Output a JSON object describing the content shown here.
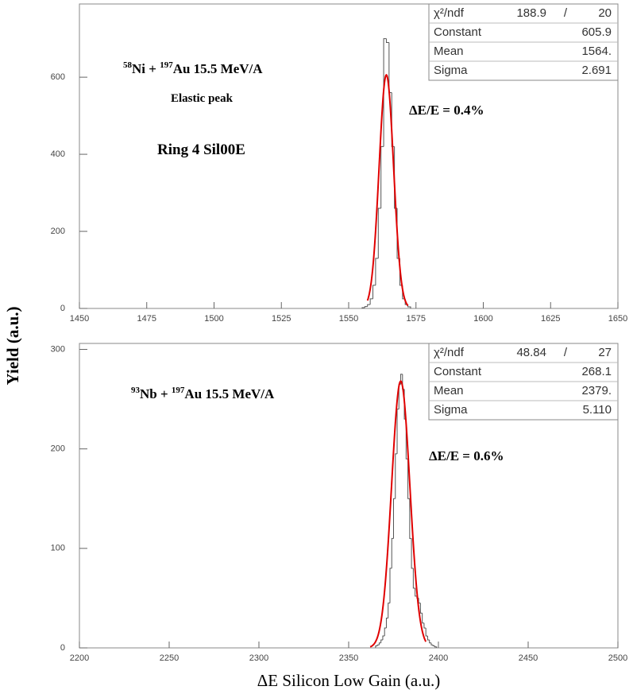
{
  "ylabel": "Yield (a.u.)",
  "chart_data": [
    {
      "type": "histogram",
      "color": "#555555",
      "fit_color": "#e00000",
      "xlim": [
        1450,
        1650
      ],
      "xticks": [
        1450,
        1475,
        1500,
        1525,
        1550,
        1575,
        1600,
        1625,
        1650
      ],
      "ylim": [
        0,
        790
      ],
      "yticks": [
        0,
        200,
        400,
        600
      ],
      "bins": [
        1555,
        1556,
        1557,
        1558,
        1559,
        1560,
        1561,
        1562,
        1563,
        1564,
        1565,
        1566,
        1567,
        1568,
        1569,
        1570,
        1571,
        1572,
        1573
      ],
      "values": [
        2,
        5,
        10,
        25,
        60,
        130,
        260,
        420,
        700,
        690,
        560,
        420,
        260,
        130,
        60,
        25,
        10,
        4
      ],
      "fit_range": [
        1557,
        1572
      ],
      "stats": [
        {
          "label": "χ²/ndf",
          "value": 188.9,
          "sep": "/",
          "ndf": 20
        },
        {
          "label": "Constant",
          "value": 605.9
        },
        {
          "label": "Mean",
          "value": 1564,
          "value_label": "1564."
        },
        {
          "label": "Sigma",
          "value": 2.691
        }
      ],
      "annotations": [
        [
          {
            "text": "58",
            "sup": true
          },
          {
            "text": "Ni + "
          },
          {
            "text": "197",
            "sup": true
          },
          {
            "text": "Au 15.5 MeV/A"
          }
        ],
        [
          {
            "text": "Elastic peak"
          }
        ],
        [
          {
            "text": "Ring 4 Sil00E"
          }
        ],
        [
          {
            "text": "ΔE/E = 0.4%"
          }
        ]
      ]
    },
    {
      "type": "histogram",
      "color": "#555555",
      "fit_color": "#e00000",
      "xlabel": "ΔE Silicon Low Gain (a.u.)",
      "xlim": [
        2200,
        2500
      ],
      "xticks": [
        2200,
        2250,
        2300,
        2350,
        2400,
        2450,
        2500
      ],
      "ylim": [
        0,
        306
      ],
      "yticks": [
        0,
        100,
        200,
        300
      ],
      "bins": [
        2365,
        2366,
        2367,
        2368,
        2369,
        2370,
        2371,
        2372,
        2373,
        2374,
        2375,
        2376,
        2377,
        2378,
        2379,
        2380,
        2381,
        2382,
        2383,
        2384,
        2385,
        2386,
        2387,
        2388,
        2389,
        2390,
        2391,
        2392,
        2393,
        2394,
        2395,
        2396,
        2397,
        2398,
        2399
      ],
      "values": [
        2,
        3,
        5,
        8,
        12,
        20,
        30,
        45,
        80,
        110,
        150,
        195,
        240,
        265,
        275,
        260,
        230,
        190,
        150,
        110,
        80,
        60,
        52,
        50,
        45,
        35,
        25,
        20,
        12,
        8,
        5,
        3,
        2,
        1
      ],
      "fit_range": [
        2362,
        2393
      ],
      "stats": [
        {
          "label": "χ²/ndf",
          "value": 48.84,
          "sep": "/",
          "ndf": 27
        },
        {
          "label": "Constant",
          "value": 268.1
        },
        {
          "label": "Mean",
          "value": 2379,
          "value_label": "2379."
        },
        {
          "label": "Sigma",
          "value": 5.11,
          "value_label": "5.110"
        }
      ],
      "annotations": [
        [
          {
            "text": "93",
            "sup": true
          },
          {
            "text": "Nb + "
          },
          {
            "text": "197",
            "sup": true
          },
          {
            "text": "Au 15.5 MeV/A"
          }
        ],
        [
          {
            "text": "ΔE/E = 0.6%"
          }
        ]
      ]
    }
  ]
}
